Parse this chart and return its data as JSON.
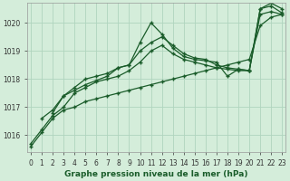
{
  "title": "Graphe pression niveau de la mer (hPa)",
  "bg_color": "#d4edda",
  "grid_color": "#b0d4be",
  "line_color": "#1a5c2a",
  "marker": "+",
  "series": [
    {
      "x": [
        0,
        1,
        2,
        3,
        4,
        5,
        6,
        7,
        8,
        9,
        10,
        11,
        12,
        13,
        14,
        15,
        16,
        17,
        18,
        19,
        20,
        21,
        22,
        23
      ],
      "y": [
        1015.6,
        1016.1,
        1016.6,
        1016.9,
        1017.0,
        1017.2,
        1017.3,
        1017.4,
        1017.5,
        1017.6,
        1017.7,
        1017.8,
        1017.9,
        1018.0,
        1018.1,
        1018.2,
        1018.3,
        1018.4,
        1018.5,
        1018.6,
        1018.7,
        1019.9,
        1020.2,
        1020.3
      ]
    },
    {
      "x": [
        0,
        1,
        2,
        3,
        4,
        5,
        6,
        7,
        8,
        9,
        10,
        11,
        12,
        13,
        14,
        15,
        16,
        17,
        18,
        19,
        20,
        21,
        22,
        23
      ],
      "y": [
        1015.7,
        1016.2,
        1016.7,
        1017.0,
        1017.5,
        1017.7,
        1017.9,
        1018.0,
        1018.1,
        1018.3,
        1018.6,
        1019.0,
        1019.2,
        1018.9,
        1018.7,
        1018.6,
        1018.5,
        1018.4,
        1018.35,
        1018.3,
        1018.3,
        1020.3,
        1020.4,
        1020.3
      ]
    },
    {
      "x": [
        1,
        2,
        3,
        4,
        5,
        6,
        7,
        8,
        9,
        10,
        11,
        12,
        13,
        14,
        15,
        16,
        17,
        18,
        19,
        20,
        21,
        22,
        23
      ],
      "y": [
        1016.6,
        1016.9,
        1017.4,
        1017.7,
        1018.0,
        1018.1,
        1018.2,
        1018.4,
        1018.5,
        1019.3,
        1020.0,
        1019.6,
        1019.1,
        1018.8,
        1018.7,
        1018.65,
        1018.6,
        1018.1,
        1018.35,
        1018.3,
        1020.5,
        1020.6,
        1020.35
      ]
    },
    {
      "x": [
        2,
        3,
        4,
        5,
        6,
        7,
        8,
        9,
        10,
        11,
        12,
        13,
        14,
        15,
        16,
        17,
        18,
        19,
        20,
        21,
        22,
        23
      ],
      "y": [
        1016.8,
        1017.4,
        1017.6,
        1017.8,
        1017.95,
        1018.1,
        1018.4,
        1018.5,
        1019.0,
        1019.3,
        1019.5,
        1019.2,
        1018.9,
        1018.75,
        1018.7,
        1018.5,
        1018.4,
        1018.35,
        1018.3,
        1020.5,
        1020.7,
        1020.5
      ]
    }
  ],
  "ylim": [
    1015.4,
    1020.7
  ],
  "xlim": [
    -0.3,
    23.3
  ],
  "yticks": [
    1016,
    1017,
    1018,
    1019,
    1020
  ],
  "xticks": [
    0,
    1,
    2,
    3,
    4,
    5,
    6,
    7,
    8,
    9,
    10,
    11,
    12,
    13,
    14,
    15,
    16,
    17,
    18,
    19,
    20,
    21,
    22,
    23
  ],
  "title_fontsize": 6.5,
  "tick_fontsize": 5.5
}
